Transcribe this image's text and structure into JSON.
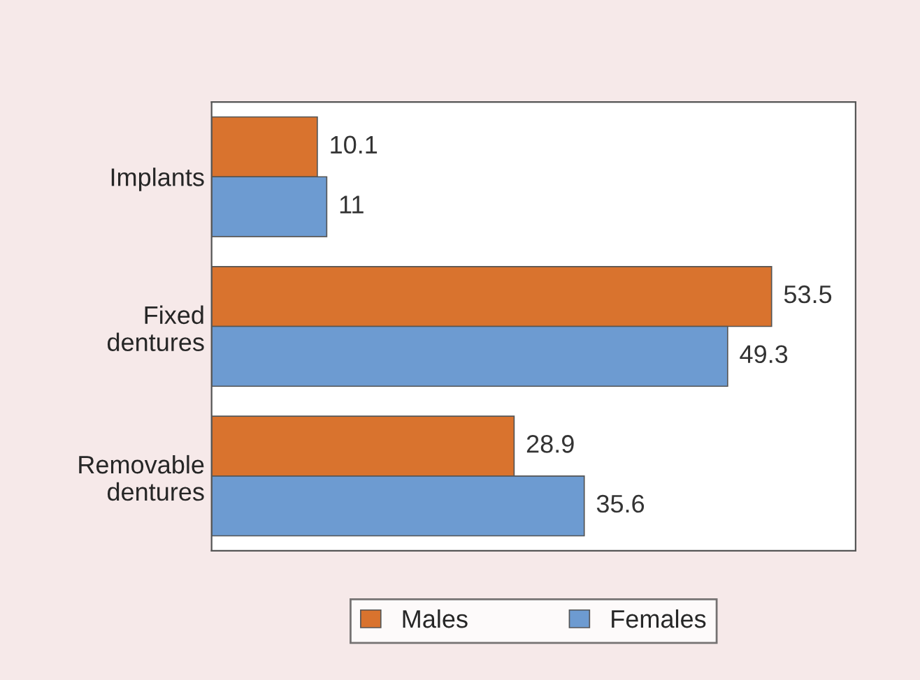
{
  "chart_data": {
    "type": "bar",
    "orientation": "horizontal",
    "categories": [
      "Implants",
      "Fixed\ndentures",
      "Removable\ndentures"
    ],
    "series": [
      {
        "name": "Males",
        "color": "#d9732e",
        "values": [
          10.1,
          53.5,
          28.9
        ]
      },
      {
        "name": "Females",
        "color": "#6d9bd1",
        "values": [
          11,
          49.3,
          35.6
        ]
      }
    ],
    "data_labels": true,
    "grid": false,
    "legend": "bottom",
    "tick_labels": "y"
  }
}
